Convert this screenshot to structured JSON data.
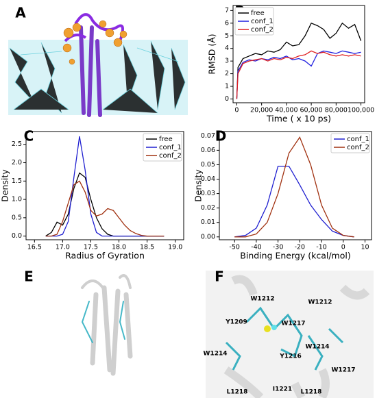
{
  "panel_labels": [
    "A",
    "B",
    "C",
    "D",
    "E",
    "F"
  ],
  "panel_f_labels": [
    "W1212",
    "W1212",
    "Y1209",
    "W1217",
    "W1214",
    "W1214",
    "Y1216",
    "W1217",
    "L1218",
    "I1221",
    "L1218"
  ],
  "chart_data": [
    {
      "type": "line",
      "x_label": "Time ( x 10 ps)",
      "y_label": "RMSD (Å)",
      "legend": "upper left",
      "x": [
        0,
        1000,
        5000,
        10000,
        15000,
        20000,
        25000,
        30000,
        35000,
        40000,
        45000,
        50000,
        55000,
        60000,
        65000,
        70000,
        75000,
        80000,
        85000,
        90000,
        95000,
        100000
      ],
      "series": [
        {
          "name": "free",
          "color": "#000000",
          "values": [
            0,
            2.5,
            3.2,
            3.4,
            3.6,
            3.5,
            3.8,
            3.7,
            3.9,
            4.5,
            4.2,
            4.3,
            5.0,
            6.0,
            5.8,
            5.5,
            4.8,
            5.2,
            6.0,
            5.6,
            5.9,
            4.6
          ]
        },
        {
          "name": "conf_1",
          "color": "#1f1fe0",
          "values": [
            0,
            2.2,
            2.9,
            3.1,
            3.0,
            3.2,
            3.1,
            3.3,
            3.2,
            3.4,
            3.1,
            3.2,
            3.0,
            2.6,
            3.6,
            3.8,
            3.7,
            3.6,
            3.8,
            3.7,
            3.6,
            3.7
          ]
        },
        {
          "name": "conf_2",
          "color": "#e02020",
          "values": [
            0,
            2.0,
            2.8,
            3.0,
            3.1,
            3.2,
            3.0,
            3.2,
            3.1,
            3.3,
            3.2,
            3.4,
            3.5,
            3.8,
            3.6,
            3.7,
            3.5,
            3.4,
            3.5,
            3.4,
            3.5,
            3.4
          ]
        }
      ],
      "xlim": [
        -3000,
        103000
      ],
      "ylim": [
        -0.3,
        7.4
      ],
      "xticks": [
        0,
        {
          "value": 20000,
          "label": "20,000"
        },
        {
          "value": 40000,
          "label": "40,000"
        },
        {
          "value": 60000,
          "label": "60,000"
        },
        {
          "value": 80000,
          "label": "80,000"
        },
        {
          "value": 100000,
          "label": "100,000"
        }
      ],
      "yticks": [
        0,
        1,
        2,
        3,
        4,
        5,
        6,
        7
      ]
    },
    {
      "type": "line",
      "x_label": "Radius of Gyration",
      "y_label": "Density",
      "legend": "upper right",
      "x": [
        16.7,
        16.8,
        16.9,
        17.0,
        17.1,
        17.2,
        17.3,
        17.4,
        17.5,
        17.6,
        17.7,
        17.8,
        17.9,
        18.0,
        18.1,
        18.2,
        18.3,
        18.4,
        18.5,
        18.6,
        18.7,
        18.8
      ],
      "series": [
        {
          "name": "free",
          "color": "#000000",
          "values": [
            0,
            0.1,
            0.38,
            0.3,
            0.6,
            1.3,
            1.72,
            1.6,
            1.0,
            0.5,
            0.2,
            0.05,
            0,
            0,
            0,
            0,
            0,
            0,
            0,
            0,
            0,
            0
          ]
        },
        {
          "name": "conf_1",
          "color": "#1f1fd0",
          "values": [
            0,
            0,
            0,
            0.05,
            0.4,
            1.6,
            2.72,
            1.8,
            0.6,
            0.1,
            0,
            0,
            0,
            0,
            0,
            0,
            0,
            0,
            0,
            0,
            0,
            0
          ]
        },
        {
          "name": "conf_2",
          "color": "#a0300f",
          "values": [
            0,
            0,
            0.05,
            0.4,
            0.9,
            1.4,
            1.5,
            1.2,
            0.7,
            0.55,
            0.6,
            0.75,
            0.7,
            0.5,
            0.3,
            0.15,
            0.07,
            0.02,
            0,
            0,
            0,
            0
          ]
        }
      ],
      "xlim": [
        16.35,
        19.15
      ],
      "ylim": [
        -0.1,
        2.85
      ],
      "xticks": [
        16.5,
        {
          "value": 17,
          "label": "17.0"
        },
        17.5,
        {
          "value": 18,
          "label": "18.0"
        },
        18.5,
        {
          "value": 19,
          "label": "19.0"
        }
      ],
      "yticks": [
        {
          "value": 0,
          "label": "0.0"
        },
        0.5,
        {
          "value": 1,
          "label": "1.0"
        },
        1.5,
        {
          "value": 2,
          "label": "2.0"
        },
        2.5
      ]
    },
    {
      "type": "line",
      "x_label": "Binding Energy (kcal/mol)",
      "y_label": "Density",
      "legend": "upper right",
      "x": [
        -50,
        -45,
        -40,
        -35,
        -30,
        -25,
        -20,
        -15,
        -10,
        -5,
        0,
        5
      ],
      "series": [
        {
          "name": "conf_1",
          "color": "#1f1fd0",
          "values": [
            0,
            0.001,
            0.006,
            0.022,
            0.049,
            0.049,
            0.036,
            0.022,
            0.012,
            0.004,
            0.001,
            0
          ]
        },
        {
          "name": "conf_2",
          "color": "#a0300f",
          "values": [
            0,
            0,
            0.002,
            0.01,
            0.03,
            0.058,
            0.069,
            0.05,
            0.022,
            0.006,
            0.001,
            0
          ]
        }
      ],
      "xlim": [
        -57,
        13
      ],
      "ylim": [
        -0.002,
        0.073
      ],
      "xticks": [
        -50,
        -40,
        -30,
        -20,
        -10,
        0,
        10
      ],
      "yticks": [
        {
          "value": 0,
          "label": "0.00"
        },
        0.01,
        0.02,
        0.03,
        0.04,
        0.05,
        0.06,
        0.07
      ]
    }
  ]
}
